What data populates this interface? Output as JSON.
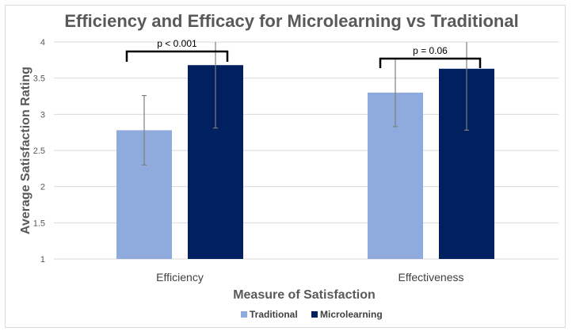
{
  "chart_data": {
    "type": "bar",
    "title": "Efficiency and Efficacy for Microlearning vs Traditional",
    "xlabel": "Measure of Satisfaction",
    "ylabel": "Average Satisfaction Rating",
    "ylim": [
      1,
      4
    ],
    "yticks": [
      "1",
      "1.5",
      "2",
      "2.5",
      "3",
      "3.5",
      "4"
    ],
    "categories": [
      "Efficiency",
      "Effectiveness"
    ],
    "series": [
      {
        "name": "Traditional",
        "color": "#8faadc",
        "values": [
          2.78,
          3.3
        ],
        "errors": [
          0.48,
          0.47
        ]
      },
      {
        "name": "Microlearning",
        "color": "#002060",
        "values": [
          3.68,
          3.63
        ],
        "errors": [
          0.87,
          0.85
        ]
      }
    ],
    "annotations": [
      "p < 0.001",
      "p = 0.06"
    ],
    "grid": true,
    "legend": "bottom"
  }
}
